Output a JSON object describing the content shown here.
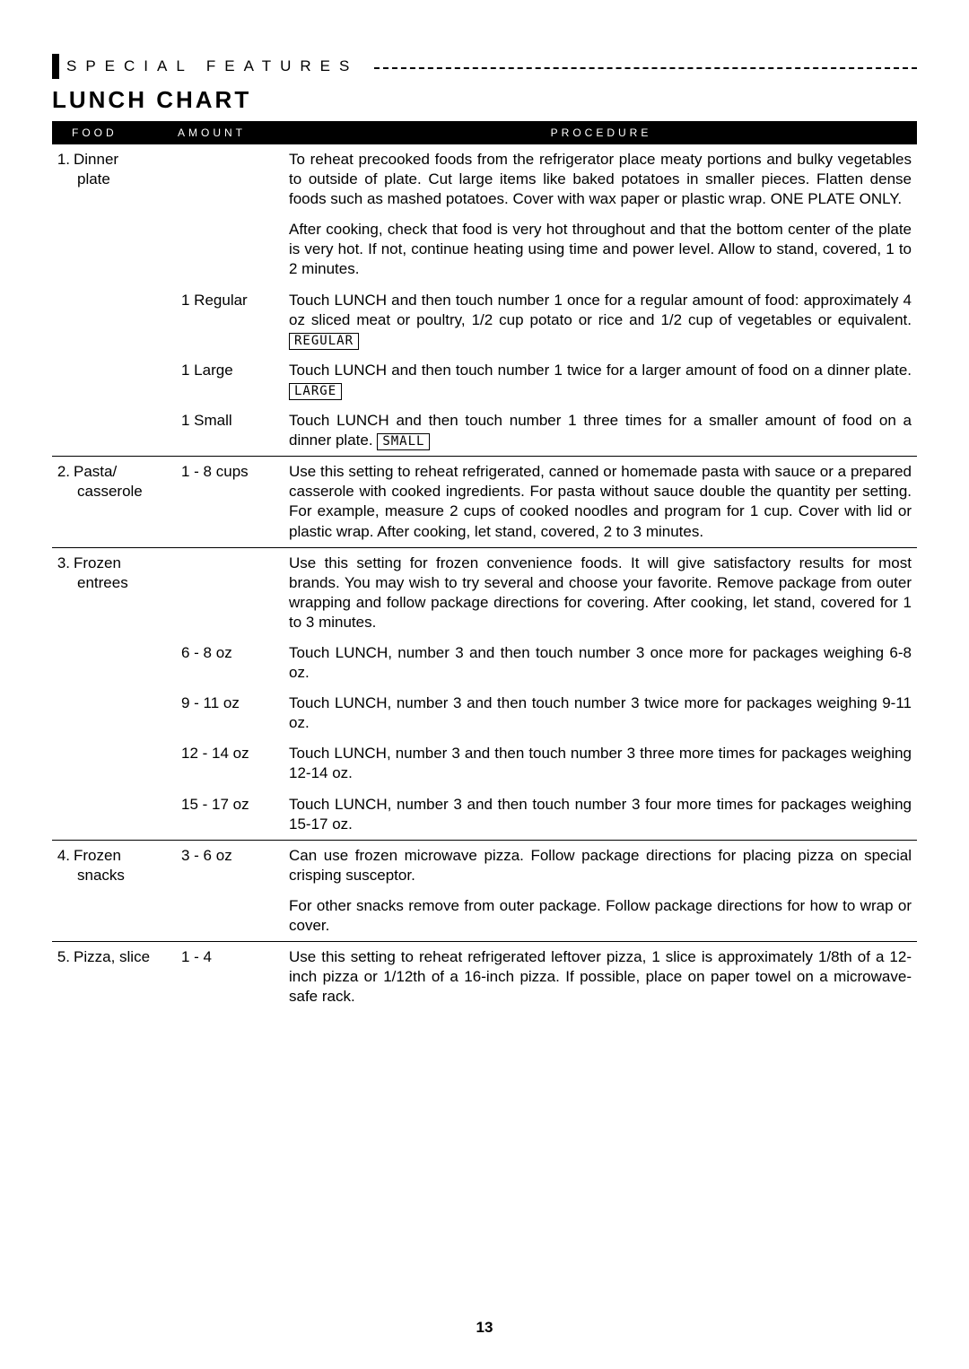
{
  "header": {
    "section": "SPECIAL FEATURES",
    "title": "LUNCH CHART"
  },
  "table": {
    "headers": {
      "food": "FOOD",
      "amount": "AMOUNT",
      "procedure": "PROCEDURE"
    },
    "rows": [
      {
        "food_num": "1.",
        "food_name": "Dinner",
        "food_name2": "plate",
        "amount": "",
        "procedure": "To reheat precooked foods from the refrigerator place meaty portions and bulky vegetables to outside of plate. Cut large items like baked potatoes in smaller pieces. Flatten dense foods such as mashed potatoes. Cover with wax paper or plastic wrap. ONE PLATE ONLY.",
        "sep": false
      },
      {
        "food_num": "",
        "food_name": "",
        "food_name2": "",
        "amount": "",
        "procedure": "After cooking, check that food is very hot throughout and that the bottom center of the plate is very hot. If not, continue heating using time and power level. Allow to stand, covered, 1 to 2 minutes.",
        "sep": false
      },
      {
        "food_num": "",
        "food_name": "",
        "food_name2": "",
        "amount": "1 Regular",
        "procedure": "Touch LUNCH and then touch number 1 once for a regular amount of food: approximately 4 oz sliced meat or poultry, 1/2 cup potato or rice and 1/2 cup of vegetables or equivalent.",
        "box": "REGULAR",
        "sep": false
      },
      {
        "food_num": "",
        "food_name": "",
        "food_name2": "",
        "amount": "1 Large",
        "procedure": "Touch LUNCH and then touch number 1 twice for a larger amount of food on a dinner plate.",
        "box": "LARGE",
        "sep": false
      },
      {
        "food_num": "",
        "food_name": "",
        "food_name2": "",
        "amount": "1 Small",
        "procedure": "Touch LUNCH and then touch number 1 three times for a smaller amount of food on a dinner plate.",
        "box": "SMALL",
        "sep": false
      },
      {
        "food_num": "2.",
        "food_name": "Pasta/",
        "food_name2": "casserole",
        "amount": "1 - 8 cups",
        "procedure": "Use this setting to reheat refrigerated, canned or homemade pasta with sauce or a prepared casserole with cooked ingredients. For pasta without sauce double the quantity per setting. For example, measure 2 cups of cooked noodles and program for 1 cup. Cover with lid or plastic wrap. After cooking, let stand, covered, 2 to 3 minutes.",
        "sep": true
      },
      {
        "food_num": "3.",
        "food_name": "Frozen",
        "food_name2": "entrees",
        "amount": "",
        "procedure": "Use this setting for frozen convenience foods. It will give satisfactory results for most brands. You may wish to try several and choose your favorite. Remove package from outer wrapping and follow package directions for covering. After cooking, let stand, covered for 1 to 3 minutes.",
        "sep": true
      },
      {
        "food_num": "",
        "food_name": "",
        "food_name2": "",
        "amount": "6 - 8 oz",
        "procedure": "Touch LUNCH, number 3 and then touch number 3 once more for packages weighing 6-8 oz.",
        "sep": false
      },
      {
        "food_num": "",
        "food_name": "",
        "food_name2": "",
        "amount": "9 - 11 oz",
        "procedure": "Touch LUNCH, number 3 and then touch number 3 twice more for packages weighing 9-11 oz.",
        "sep": false
      },
      {
        "food_num": "",
        "food_name": "",
        "food_name2": "",
        "amount": "12 - 14 oz",
        "procedure": "Touch LUNCH, number 3 and then touch number 3 three more times for packages weighing 12-14 oz.",
        "sep": false
      },
      {
        "food_num": "",
        "food_name": "",
        "food_name2": "",
        "amount": "15 - 17 oz",
        "procedure": "Touch LUNCH, number 3 and then touch number 3 four more times for packages weighing 15-17 oz.",
        "sep": false
      },
      {
        "food_num": "4.",
        "food_name": "Frozen",
        "food_name2": "snacks",
        "amount": "3 - 6 oz",
        "procedure": "Can use frozen microwave pizza. Follow package directions for placing pizza on special crisping susceptor.",
        "sep": true
      },
      {
        "food_num": "",
        "food_name": "",
        "food_name2": "",
        "amount": "",
        "procedure": "For other snacks remove from outer package. Follow package directions for how to wrap or cover.",
        "sep": false
      },
      {
        "food_num": "5.",
        "food_name": "Pizza, slice",
        "food_name2": "",
        "amount": "1 - 4",
        "procedure": "Use this setting to reheat refrigerated leftover pizza, 1 slice is approximately 1/8th of a 12-inch pizza or 1/12th of a 16-inch pizza. If possible, place on paper towel on a microwave-safe rack.",
        "sep": true
      }
    ]
  },
  "page_number": "13",
  "colors": {
    "bg": "#ffffff",
    "text": "#000000",
    "header_bg": "#000000",
    "header_text": "#ffffff"
  }
}
